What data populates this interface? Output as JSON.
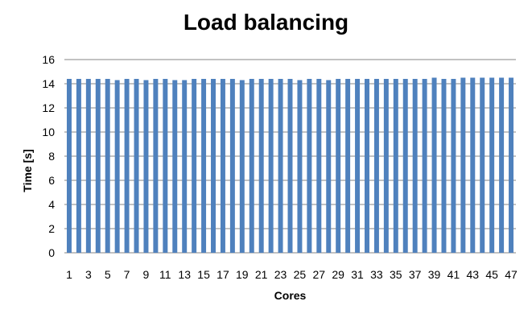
{
  "chart_data": {
    "type": "bar",
    "title": "Load balancing",
    "xlabel": "Cores",
    "ylabel": "Time [s]",
    "ylim": [
      0,
      16
    ],
    "yticks": [
      "0",
      "2",
      "4",
      "6",
      "8",
      "10",
      "12",
      "14",
      "16"
    ],
    "grid": true,
    "legend": "none",
    "color": "#4F81BD",
    "categories": [
      "1",
      "2",
      "3",
      "4",
      "5",
      "6",
      "7",
      "8",
      "9",
      "10",
      "11",
      "12",
      "13",
      "14",
      "15",
      "16",
      "17",
      "18",
      "19",
      "20",
      "21",
      "22",
      "23",
      "24",
      "25",
      "26",
      "27",
      "28",
      "29",
      "30",
      "31",
      "32",
      "33",
      "34",
      "35",
      "36",
      "37",
      "38",
      "39",
      "40",
      "41",
      "42",
      "43",
      "44",
      "45",
      "46",
      "47"
    ],
    "xtick_labels": [
      "1",
      "",
      "3",
      "",
      "5",
      "",
      "7",
      "",
      "9",
      "",
      "11",
      "",
      "13",
      "",
      "15",
      "",
      "17",
      "",
      "19",
      "",
      "21",
      "",
      "23",
      "",
      "25",
      "",
      "27",
      "",
      "29",
      "",
      "31",
      "",
      "33",
      "",
      "35",
      "",
      "37",
      "",
      "39",
      "",
      "41",
      "",
      "43",
      "",
      "45",
      "",
      "47"
    ],
    "values": [
      14.4,
      14.4,
      14.4,
      14.4,
      14.4,
      14.3,
      14.4,
      14.4,
      14.3,
      14.4,
      14.4,
      14.3,
      14.3,
      14.4,
      14.4,
      14.4,
      14.4,
      14.4,
      14.3,
      14.4,
      14.4,
      14.4,
      14.4,
      14.4,
      14.3,
      14.4,
      14.4,
      14.3,
      14.4,
      14.4,
      14.4,
      14.4,
      14.4,
      14.4,
      14.4,
      14.4,
      14.4,
      14.4,
      14.5,
      14.4,
      14.4,
      14.5,
      14.5,
      14.5,
      14.5,
      14.5,
      14.5
    ]
  }
}
